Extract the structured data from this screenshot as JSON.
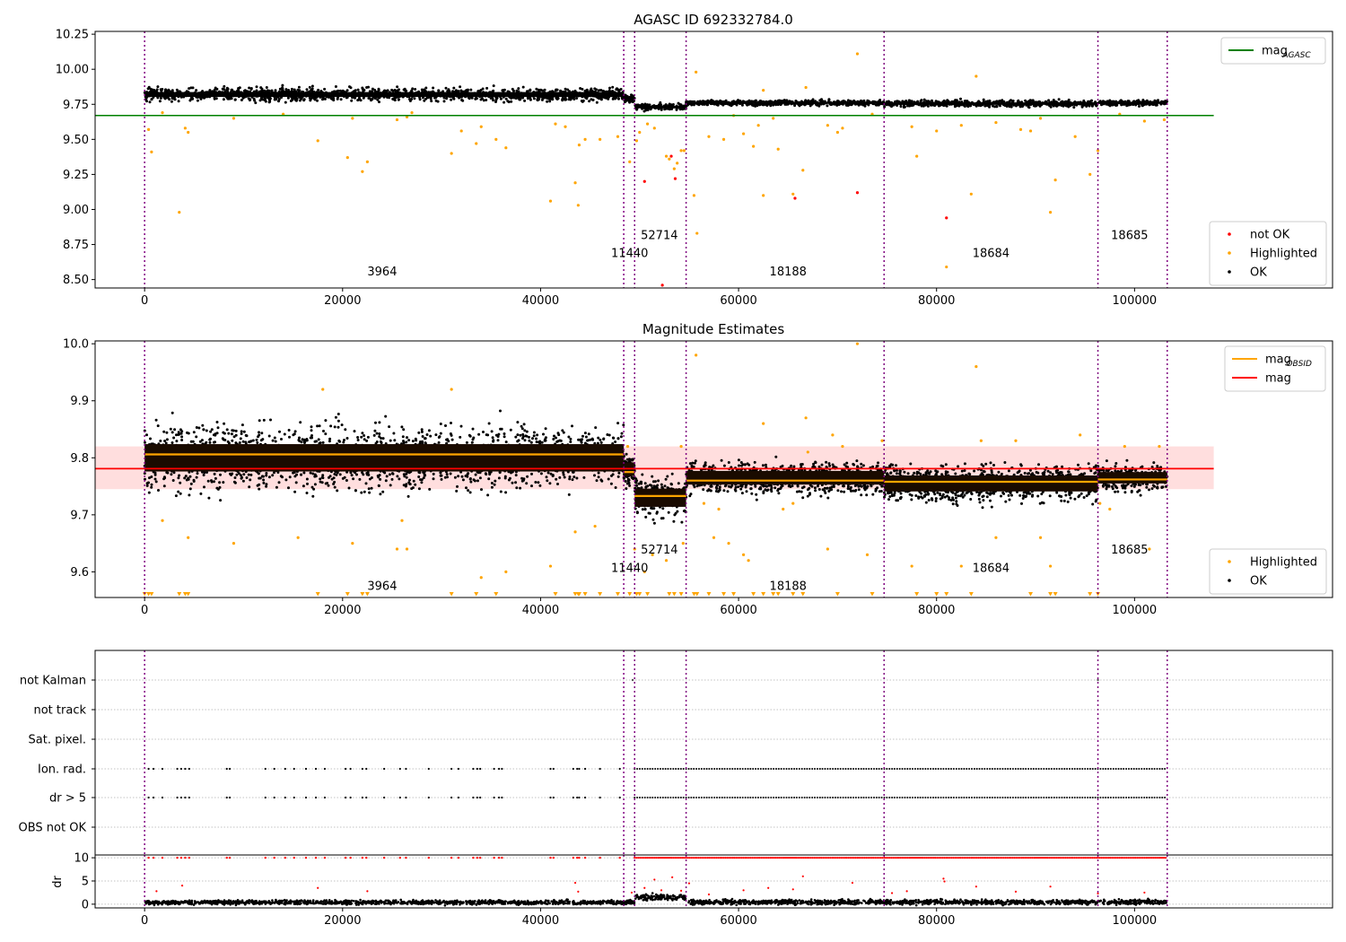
{
  "chart_data": [
    {
      "type": "scatter",
      "title": "AGASC ID 692332784.0",
      "xlim": [
        -5000,
        120000
      ],
      "ylim": [
        8.44,
        10.27
      ],
      "xticks": [
        0,
        20000,
        40000,
        60000,
        80000,
        100000
      ],
      "yticks": [
        8.5,
        8.75,
        9.0,
        9.25,
        9.5,
        9.75,
        10.0,
        10.25
      ],
      "ytick_labels": [
        "8.50",
        "8.75",
        "9.00",
        "9.25",
        "9.50",
        "9.75",
        "10.00",
        "10.25"
      ],
      "obs_boundaries": [
        0,
        48400,
        49500,
        54700,
        74700,
        96300,
        103300
      ],
      "obsids": [
        {
          "label": "3964",
          "x": 24000,
          "y": 8.53
        },
        {
          "label": "11440",
          "x": 49000,
          "y": 8.66
        },
        {
          "label": "52714",
          "x": 52000,
          "y": 8.79
        },
        {
          "label": "18188",
          "x": 65000,
          "y": 8.53
        },
        {
          "label": "18684",
          "x": 85500,
          "y": 8.66
        },
        {
          "label": "18685",
          "x": 99500,
          "y": 8.79
        }
      ],
      "segments_ok": [
        {
          "x0": 0,
          "x1": 48400,
          "y_center": 9.82,
          "spread": 0.05
        },
        {
          "x0": 48400,
          "x1": 49500,
          "y_center": 9.79,
          "spread": 0.03
        },
        {
          "x0": 49500,
          "x1": 54700,
          "y_center": 9.73,
          "spread": 0.025
        },
        {
          "x0": 54700,
          "x1": 74700,
          "y_center": 9.76,
          "spread": 0.02
        },
        {
          "x0": 74700,
          "x1": 96300,
          "y_center": 9.755,
          "spread": 0.025
        },
        {
          "x0": 96300,
          "x1": 103300,
          "y_center": 9.76,
          "spread": 0.02
        }
      ],
      "highlighted_points": [
        [
          400,
          9.57
        ],
        [
          700,
          9.41
        ],
        [
          1800,
          9.69
        ],
        [
          3500,
          8.98
        ],
        [
          4100,
          9.58
        ],
        [
          4400,
          9.55
        ],
        [
          9000,
          9.65
        ],
        [
          14000,
          9.68
        ],
        [
          17500,
          9.49
        ],
        [
          20500,
          9.37
        ],
        [
          21000,
          9.65
        ],
        [
          22000,
          9.27
        ],
        [
          22500,
          9.34
        ],
        [
          25500,
          9.64
        ],
        [
          26500,
          9.66
        ],
        [
          27000,
          9.69
        ],
        [
          31000,
          9.4
        ],
        [
          32000,
          9.56
        ],
        [
          33500,
          9.47
        ],
        [
          34000,
          9.59
        ],
        [
          35500,
          9.5
        ],
        [
          36500,
          9.44
        ],
        [
          41000,
          9.06
        ],
        [
          41500,
          9.61
        ],
        [
          42500,
          9.59
        ],
        [
          43500,
          9.19
        ],
        [
          43800,
          9.03
        ],
        [
          43900,
          9.46
        ],
        [
          44500,
          9.5
        ],
        [
          46000,
          9.5
        ],
        [
          47800,
          9.52
        ],
        [
          49000,
          9.34
        ],
        [
          49700,
          9.49
        ],
        [
          50000,
          9.55
        ],
        [
          50800,
          9.61
        ],
        [
          51500,
          9.58
        ],
        [
          52700,
          9.38
        ],
        [
          53000,
          9.36
        ],
        [
          53500,
          9.29
        ],
        [
          53800,
          9.33
        ],
        [
          54200,
          9.42
        ],
        [
          54500,
          9.42
        ],
        [
          55500,
          9.1
        ],
        [
          55800,
          8.83
        ],
        [
          55700,
          9.98
        ],
        [
          57000,
          9.52
        ],
        [
          58500,
          9.5
        ],
        [
          59500,
          9.67
        ],
        [
          60500,
          9.54
        ],
        [
          61500,
          9.45
        ],
        [
          62000,
          9.6
        ],
        [
          62500,
          9.85
        ],
        [
          62500,
          9.1
        ],
        [
          63500,
          9.65
        ],
        [
          64000,
          9.43
        ],
        [
          65500,
          9.11
        ],
        [
          66500,
          9.28
        ],
        [
          66800,
          9.87
        ],
        [
          69000,
          9.6
        ],
        [
          70000,
          9.55
        ],
        [
          70500,
          9.58
        ],
        [
          72000,
          10.11
        ],
        [
          73500,
          9.68
        ],
        [
          77500,
          9.59
        ],
        [
          78000,
          9.38
        ],
        [
          80000,
          9.56
        ],
        [
          81000,
          8.59
        ],
        [
          82500,
          9.6
        ],
        [
          83500,
          9.11
        ],
        [
          84000,
          9.95
        ],
        [
          86000,
          9.62
        ],
        [
          88500,
          9.57
        ],
        [
          89500,
          9.56
        ],
        [
          90500,
          9.65
        ],
        [
          91500,
          8.98
        ],
        [
          92000,
          9.21
        ],
        [
          94000,
          9.52
        ],
        [
          95500,
          9.25
        ],
        [
          96300,
          9.42
        ],
        [
          98500,
          9.68
        ],
        [
          101000,
          9.63
        ],
        [
          103000,
          9.64
        ]
      ],
      "notok_points": [
        [
          50500,
          9.2
        ],
        [
          52300,
          8.46
        ],
        [
          53200,
          9.38
        ],
        [
          53600,
          9.22
        ],
        [
          65700,
          9.08
        ],
        [
          72000,
          9.12
        ],
        [
          81000,
          8.94
        ]
      ],
      "reference_line": {
        "y": 9.67,
        "x0": -5000,
        "x1": 108000,
        "color": "#008000"
      },
      "legend_top": [
        {
          "label": "mag",
          "sub": "AGASC",
          "color": "#008000"
        }
      ],
      "legend_bottom": [
        {
          "label": "not OK",
          "color": "#ff0000"
        },
        {
          "label": "Highlighted",
          "color": "#ffa500"
        },
        {
          "label": "OK",
          "color": "#000000"
        }
      ]
    },
    {
      "type": "scatter",
      "title": "Magnitude Estimates",
      "xlim": [
        -5000,
        120000
      ],
      "ylim": [
        9.555,
        10.005
      ],
      "xticks": [
        0,
        20000,
        40000,
        60000,
        80000,
        100000
      ],
      "yticks": [
        9.6,
        9.7,
        9.8,
        9.9,
        10.0
      ],
      "ytick_labels": [
        "9.6",
        "9.7",
        "9.8",
        "9.9",
        "10.0"
      ],
      "obs_boundaries": [
        0,
        48400,
        49500,
        54700,
        74700,
        96300,
        103300
      ],
      "obsids": [
        {
          "label": "3964",
          "x": 24000,
          "y": 9.568
        },
        {
          "label": "11440",
          "x": 49000,
          "y": 9.6
        },
        {
          "label": "52714",
          "x": 52000,
          "y": 9.632
        },
        {
          "label": "18188",
          "x": 65000,
          "y": 9.568
        },
        {
          "label": "18684",
          "x": 85500,
          "y": 9.6
        },
        {
          "label": "18685",
          "x": 99500,
          "y": 9.632
        }
      ],
      "segments_ok": [
        {
          "x0": 0,
          "x1": 48400,
          "y_center": 9.8,
          "spread": 0.06
        },
        {
          "x0": 48400,
          "x1": 49500,
          "y_center": 9.78,
          "spread": 0.03
        },
        {
          "x0": 49500,
          "x1": 54700,
          "y_center": 9.73,
          "spread": 0.04
        },
        {
          "x0": 54700,
          "x1": 74700,
          "y_center": 9.765,
          "spread": 0.03
        },
        {
          "x0": 74700,
          "x1": 96300,
          "y_center": 9.755,
          "spread": 0.035
        },
        {
          "x0": 96300,
          "x1": 103300,
          "y_center": 9.765,
          "spread": 0.025
        }
      ],
      "obsid_mean": [
        {
          "x0": 0,
          "x1": 48400,
          "y": 9.806
        },
        {
          "x0": 48400,
          "x1": 49500,
          "y": 9.775
        },
        {
          "x0": 49500,
          "x1": 54700,
          "y": 9.733
        },
        {
          "x0": 54700,
          "x1": 74700,
          "y": 9.76
        },
        {
          "x0": 74700,
          "x1": 96300,
          "y": 9.758
        },
        {
          "x0": 96300,
          "x1": 103300,
          "y": 9.762
        }
      ],
      "mag_line": {
        "y": 9.781,
        "x0": -5000,
        "x1": 108000,
        "band": [
          9.745,
          9.82
        ],
        "color": "#ff0000"
      },
      "highlighted_points": [
        [
          1800,
          9.69
        ],
        [
          4400,
          9.66
        ],
        [
          9000,
          9.65
        ],
        [
          15500,
          9.66
        ],
        [
          18000,
          9.92
        ],
        [
          21000,
          9.65
        ],
        [
          25500,
          9.64
        ],
        [
          26500,
          9.64
        ],
        [
          26000,
          9.69
        ],
        [
          31000,
          9.92
        ],
        [
          34000,
          9.59
        ],
        [
          36500,
          9.6
        ],
        [
          41000,
          9.61
        ],
        [
          43500,
          9.67
        ],
        [
          45500,
          9.68
        ],
        [
          48800,
          9.82
        ],
        [
          49500,
          9.64
        ],
        [
          50500,
          9.6
        ],
        [
          51300,
          9.63
        ],
        [
          52700,
          9.62
        ],
        [
          54400,
          9.65
        ],
        [
          54200,
          9.82
        ],
        [
          55700,
          9.98
        ],
        [
          56500,
          9.72
        ],
        [
          57500,
          9.66
        ],
        [
          58000,
          9.71
        ],
        [
          59000,
          9.65
        ],
        [
          60500,
          9.63
        ],
        [
          61000,
          9.62
        ],
        [
          62500,
          9.86
        ],
        [
          64500,
          9.71
        ],
        [
          65500,
          9.72
        ],
        [
          66800,
          9.87
        ],
        [
          67000,
          9.81
        ],
        [
          69000,
          9.64
        ],
        [
          69500,
          9.84
        ],
        [
          70500,
          9.82
        ],
        [
          72000,
          10.0
        ],
        [
          73000,
          9.63
        ],
        [
          74500,
          9.83
        ],
        [
          77500,
          9.61
        ],
        [
          82500,
          9.61
        ],
        [
          84000,
          9.96
        ],
        [
          84500,
          9.83
        ],
        [
          86000,
          9.66
        ],
        [
          88000,
          9.83
        ],
        [
          90500,
          9.66
        ],
        [
          91500,
          9.61
        ],
        [
          94500,
          9.84
        ],
        [
          96500,
          9.72
        ],
        [
          97500,
          9.71
        ],
        [
          99000,
          9.82
        ],
        [
          101500,
          9.64
        ],
        [
          102500,
          9.82
        ]
      ],
      "clipped_points": [
        0,
        400,
        700,
        3500,
        4100,
        4400,
        17500,
        20500,
        22000,
        22500,
        31000,
        33500,
        35500,
        41500,
        43500,
        43800,
        43900,
        44500,
        46000,
        47800,
        49000,
        49700,
        50000,
        50800,
        53000,
        53500,
        54200,
        55500,
        55800,
        57000,
        58500,
        59500,
        61500,
        62500,
        63500,
        64000,
        65500,
        66500,
        70000,
        73500,
        78000,
        80000,
        81000,
        83500,
        89500,
        91500,
        92000,
        95500,
        96300
      ],
      "legend_top": [
        {
          "label": "mag",
          "sub": "OBSID",
          "color": "#ffa500"
        },
        {
          "label": "mag",
          "sub": "",
          "color": "#ff0000"
        }
      ],
      "legend_bottom": [
        {
          "label": "Highlighted",
          "color": "#ffa500"
        },
        {
          "label": "OK",
          "color": "#000000"
        }
      ]
    },
    {
      "type": "scatter",
      "xlim": [
        -5000,
        120000
      ],
      "xticks": [
        0,
        20000,
        40000,
        60000,
        80000,
        100000
      ],
      "obs_boundaries": [
        0,
        48400,
        49500,
        54700,
        74700,
        96300,
        103300
      ],
      "flag_rows": [
        "not Kalman",
        "not track",
        "Sat. pixel.",
        "Ion. rad.",
        "dr > 5",
        "OBS not OK"
      ],
      "flag_sparse_x": [
        400,
        900,
        1800,
        3300,
        3700,
        4100,
        4500,
        8300,
        8600,
        12200,
        13100,
        14200,
        15100,
        16300,
        17300,
        18200,
        20300,
        20800,
        22000,
        22400,
        24200,
        25800,
        26400,
        28700,
        31000,
        31700,
        33200,
        33600,
        33900,
        35300,
        35800,
        36100,
        41000,
        41300,
        43300,
        43700,
        43900,
        44500,
        46000,
        48000
      ],
      "flag_dense_ranges": [
        [
          49500,
          103300
        ]
      ],
      "flag_rare_not_kalman_x": [
        49300,
        96300
      ],
      "dr_ylabel": "dr",
      "dr_ylim": [
        -0.8,
        10.6
      ],
      "dr_yticks": [
        0,
        5,
        10
      ],
      "dr_segments": [
        {
          "x0": 0,
          "x1": 49500,
          "level": 0.4,
          "spread": 0.45
        },
        {
          "x0": 49500,
          "x1": 54700,
          "level": 1.5,
          "spread": 0.7
        },
        {
          "x0": 54700,
          "x1": 103300,
          "level": 0.45,
          "spread": 0.5
        }
      ],
      "dr_clip_value": 10,
      "dr_outliers": [
        [
          1200,
          2.8
        ],
        [
          3800,
          4.0
        ],
        [
          17500,
          3.5
        ],
        [
          22500,
          2.8
        ],
        [
          43500,
          4.6
        ],
        [
          43800,
          2.7
        ],
        [
          49200,
          2.5
        ],
        [
          50500,
          3.5
        ],
        [
          51500,
          5.3
        ],
        [
          52200,
          3.0
        ],
        [
          53300,
          5.8
        ],
        [
          54200,
          2.9
        ],
        [
          55000,
          4.5
        ],
        [
          57000,
          2.1
        ],
        [
          60500,
          3.0
        ],
        [
          63000,
          3.5
        ],
        [
          65500,
          3.2
        ],
        [
          66500,
          6.0
        ],
        [
          71500,
          4.6
        ],
        [
          75500,
          2.4
        ],
        [
          77000,
          2.8
        ],
        [
          80700,
          5.5
        ],
        [
          80800,
          4.9
        ],
        [
          84000,
          3.8
        ],
        [
          88000,
          2.7
        ],
        [
          91500,
          3.8
        ],
        [
          96300,
          2.3
        ],
        [
          101000,
          2.5
        ]
      ]
    }
  ]
}
